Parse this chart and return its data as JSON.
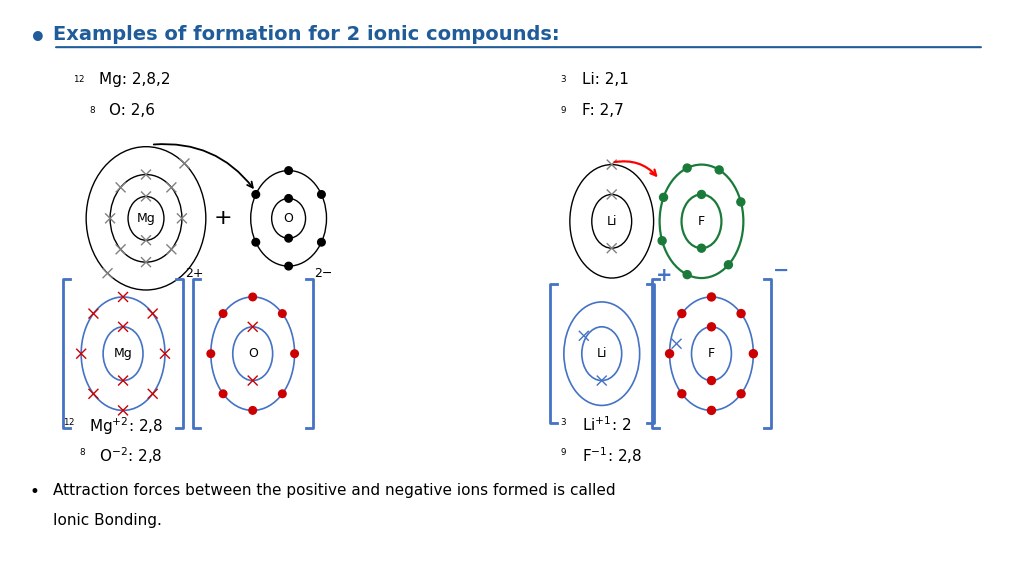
{
  "title": "Examples of formation for 2 ionic compounds:",
  "title_color": "#1F5C99",
  "bg_color": "#ffffff",
  "bottom_text1": "Attraction forces between the positive and negative ions formed is called",
  "bottom_text2": "Ionic Bonding."
}
